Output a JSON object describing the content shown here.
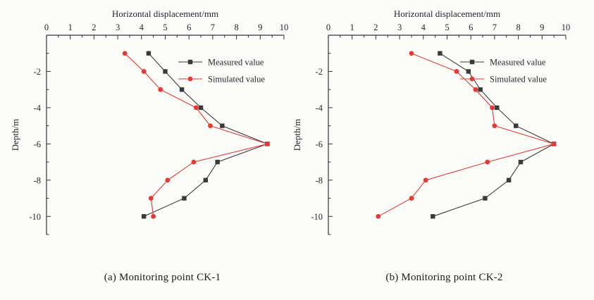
{
  "chart_data": [
    {
      "type": "line",
      "caption": "(a) Monitoring point CK-1",
      "xlabel": "Horizontal displacement/mm",
      "ylabel": "Depth/m",
      "xlim": [
        0,
        10
      ],
      "ylim": [
        0,
        -11
      ],
      "xticks": [
        0,
        1,
        2,
        3,
        4,
        5,
        6,
        7,
        8,
        9,
        10
      ],
      "yticks": [
        -2,
        -4,
        -6,
        -8,
        -10
      ],
      "depths": [
        -1,
        -2,
        -3,
        -4,
        -5,
        -6,
        -7,
        -8,
        -9,
        -10
      ],
      "axis_color": "#2f3542",
      "text_color": "#1f2430",
      "legend_position": "top-right-inside",
      "grid": false,
      "series": [
        {
          "name": "Measured value",
          "color": "#3a3a3a",
          "marker": "square",
          "values": [
            4.3,
            5.0,
            5.7,
            6.5,
            7.4,
            9.3,
            7.2,
            6.7,
            5.8,
            4.1
          ]
        },
        {
          "name": "Simulated value",
          "color": "#e53935",
          "marker": "circle",
          "values": [
            3.3,
            4.1,
            4.8,
            6.3,
            6.9,
            9.3,
            6.2,
            5.1,
            4.4,
            4.5
          ]
        }
      ]
    },
    {
      "type": "line",
      "caption": "(b) Monitoring point CK-2",
      "xlabel": "Horizontal displacement/mm",
      "ylabel": "Depth/m",
      "xlim": [
        0,
        10
      ],
      "ylim": [
        0,
        -11
      ],
      "xticks": [
        0,
        1,
        2,
        3,
        4,
        5,
        6,
        7,
        8,
        9,
        10
      ],
      "yticks": [
        -2,
        -4,
        -6,
        -8,
        -10
      ],
      "depths": [
        -1,
        -2,
        -3,
        -4,
        -5,
        -6,
        -7,
        -8,
        -9,
        -10
      ],
      "axis_color": "#2f3542",
      "text_color": "#1f2430",
      "legend_position": "top-right-inside",
      "grid": false,
      "series": [
        {
          "name": "Measured value",
          "color": "#3a3a3a",
          "marker": "square",
          "values": [
            4.7,
            5.9,
            6.4,
            7.1,
            7.9,
            9.5,
            8.1,
            7.6,
            6.6,
            4.4
          ]
        },
        {
          "name": "Simulated value",
          "color": "#e53935",
          "marker": "circle",
          "values": [
            3.5,
            5.4,
            6.2,
            6.9,
            7.0,
            9.5,
            6.7,
            4.1,
            3.5,
            2.1
          ]
        }
      ]
    }
  ]
}
